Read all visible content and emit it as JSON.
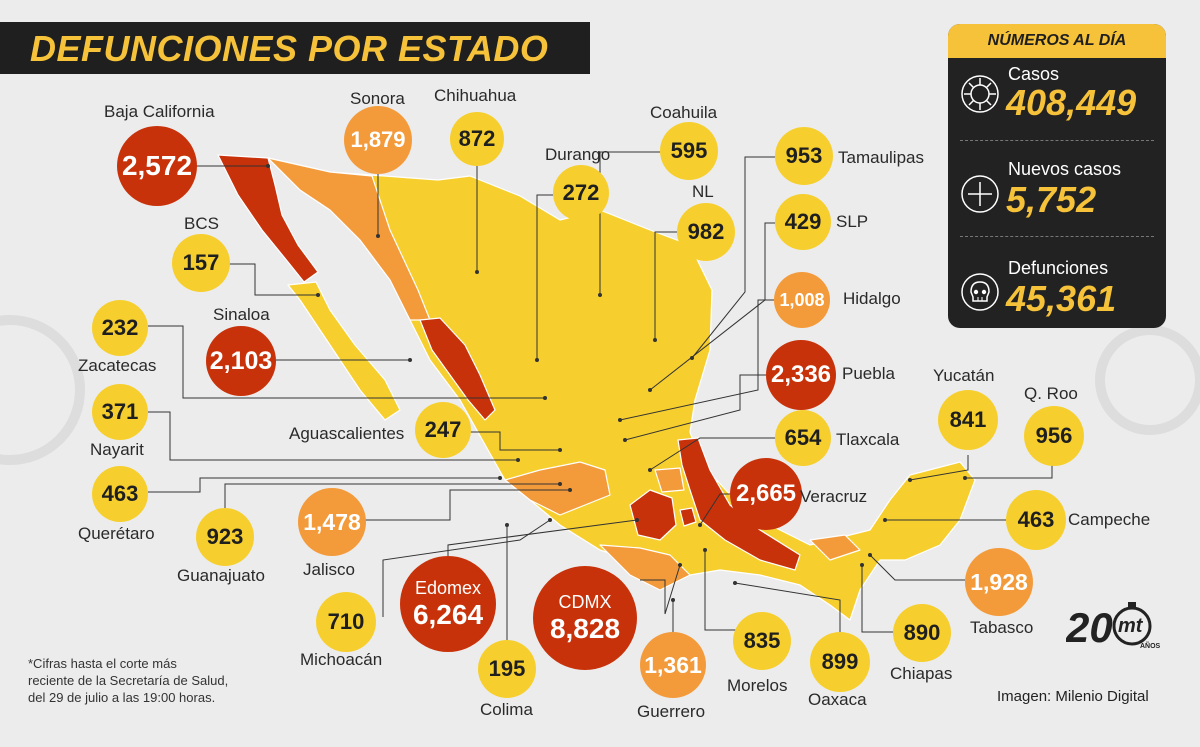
{
  "title": "DEFUNCIONES POR ESTADO",
  "panel": {
    "header": "NÚMEROS AL DÍA",
    "stats": [
      {
        "label": "Casos",
        "value": "408,449",
        "icon": "virus-icon"
      },
      {
        "label": "Nuevos casos",
        "value": "5,752",
        "icon": "plus-icon"
      },
      {
        "label": "Defunciones",
        "value": "45,361",
        "icon": "skull-icon"
      }
    ]
  },
  "states": [
    {
      "name": "Baja California",
      "value": "2,572",
      "level": "dark"
    },
    {
      "name": "Sonora",
      "value": "1,879",
      "level": "orange"
    },
    {
      "name": "Chihuahua",
      "value": "872",
      "level": "yellow"
    },
    {
      "name": "Coahuila",
      "value": "595",
      "level": "yellow"
    },
    {
      "name": "Durango",
      "value": "272",
      "level": "yellow"
    },
    {
      "name": "NL",
      "value": "982",
      "level": "yellow"
    },
    {
      "name": "Tamaulipas",
      "value": "953",
      "level": "yellow"
    },
    {
      "name": "SLP",
      "value": "429",
      "level": "yellow"
    },
    {
      "name": "BCS",
      "value": "157",
      "level": "yellow"
    },
    {
      "name": "Hidalgo",
      "value": "1,008",
      "level": "orange"
    },
    {
      "name": "Sinaloa",
      "value": "2,103",
      "level": "dark"
    },
    {
      "name": "Zacatecas",
      "value": "232",
      "level": "yellow"
    },
    {
      "name": "Puebla",
      "value": "2,336",
      "level": "dark"
    },
    {
      "name": "Nayarit",
      "value": "371",
      "level": "yellow"
    },
    {
      "name": "Yucatán",
      "value": "841",
      "level": "yellow"
    },
    {
      "name": "Q. Roo",
      "value": "956",
      "level": "yellow"
    },
    {
      "name": "Aguascalientes",
      "value": "247",
      "level": "yellow"
    },
    {
      "name": "Tlaxcala",
      "value": "654",
      "level": "yellow"
    },
    {
      "name": "Querétaro",
      "value": "463",
      "level": "yellow"
    },
    {
      "name": "Veracruz",
      "value": "2,665",
      "level": "dark"
    },
    {
      "name": "Guanajuato",
      "value": "923",
      "level": "yellow"
    },
    {
      "name": "Jalisco",
      "value": "1,478",
      "level": "orange"
    },
    {
      "name": "Campeche",
      "value": "463",
      "level": "yellow"
    },
    {
      "name": "Edomex",
      "value": "6,264",
      "level": "dark"
    },
    {
      "name": "CDMX",
      "value": "8,828",
      "level": "dark"
    },
    {
      "name": "Tabasco",
      "value": "1,928",
      "level": "orange"
    },
    {
      "name": "Michoacán",
      "value": "710",
      "level": "yellow"
    },
    {
      "name": "Chiapas",
      "value": "890",
      "level": "yellow"
    },
    {
      "name": "Morelos",
      "value": "835",
      "level": "yellow"
    },
    {
      "name": "Oaxaca",
      "value": "899",
      "level": "yellow"
    },
    {
      "name": "Colima",
      "value": "195",
      "level": "yellow"
    },
    {
      "name": "Guerrero",
      "value": "1,361",
      "level": "orange"
    }
  ],
  "footnote": {
    "line1": "*Cifras hasta el corte más",
    "line2": "reciente de la Secretaría de Salud,",
    "line3": "del 29 de julio a las 19:00 horas."
  },
  "credit": "Imagen: Milenio Digital",
  "logo": {
    "number": "20",
    "brand": "mt",
    "sub": "AÑOS"
  },
  "colors": {
    "yellow": "#f6cf2e",
    "orange": "#f39b3b",
    "dark": "#c8320a",
    "background": "#ececec",
    "panel": "#222222",
    "accent": "#f6c23a"
  }
}
